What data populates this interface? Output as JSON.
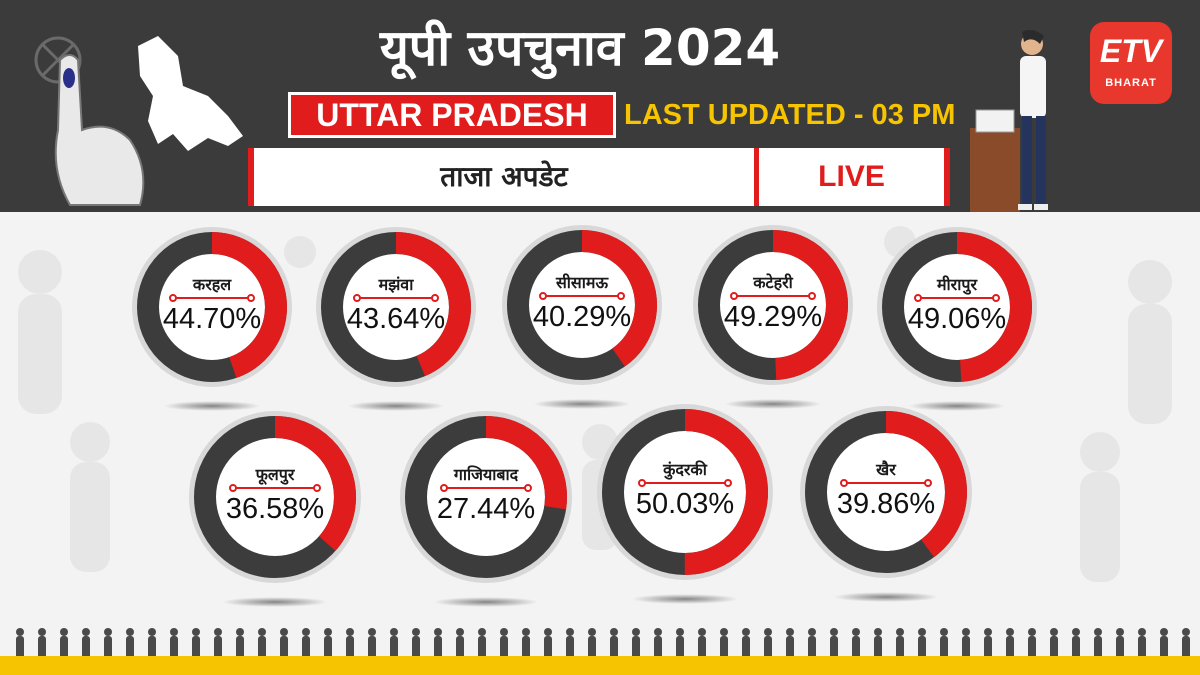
{
  "header": {
    "title": "यूपी उपचुनाव 2024",
    "state": "UTTAR PRADESH",
    "last_updated": "LAST UPDATED - 03 PM",
    "bar_left": "ताजा अपडेट",
    "bar_right": "LIVE"
  },
  "logo": {
    "main": "ETV",
    "sub": "BHARAT"
  },
  "colors": {
    "header_bg": "#3b3b3b",
    "accent_red": "#e01c1c",
    "highlight_yellow": "#f6c400",
    "ring_dark": "#3c3c3c"
  },
  "chart_data": {
    "type": "pie",
    "series": [
      {
        "name": "करहल",
        "label": "44.70%",
        "value": 44.7
      },
      {
        "name": "मझंवा",
        "label": "43.64%",
        "value": 43.64
      },
      {
        "name": "सीसामऊ",
        "label": "40.29%",
        "value": 40.29
      },
      {
        "name": "कटेहरी",
        "label": "49.29%",
        "value": 49.29
      },
      {
        "name": "मीरापुर",
        "label": "49.06%",
        "value": 49.06
      },
      {
        "name": "फूलपुर",
        "label": "36.58%",
        "value": 36.58
      },
      {
        "name": "गाजियाबाद",
        "label": "27.44%",
        "value": 27.44
      },
      {
        "name": "कुंदरकी",
        "label": "50.03%",
        "value": 50.03
      },
      {
        "name": "खैर",
        "label": "39.86%",
        "value": 39.86
      }
    ]
  }
}
